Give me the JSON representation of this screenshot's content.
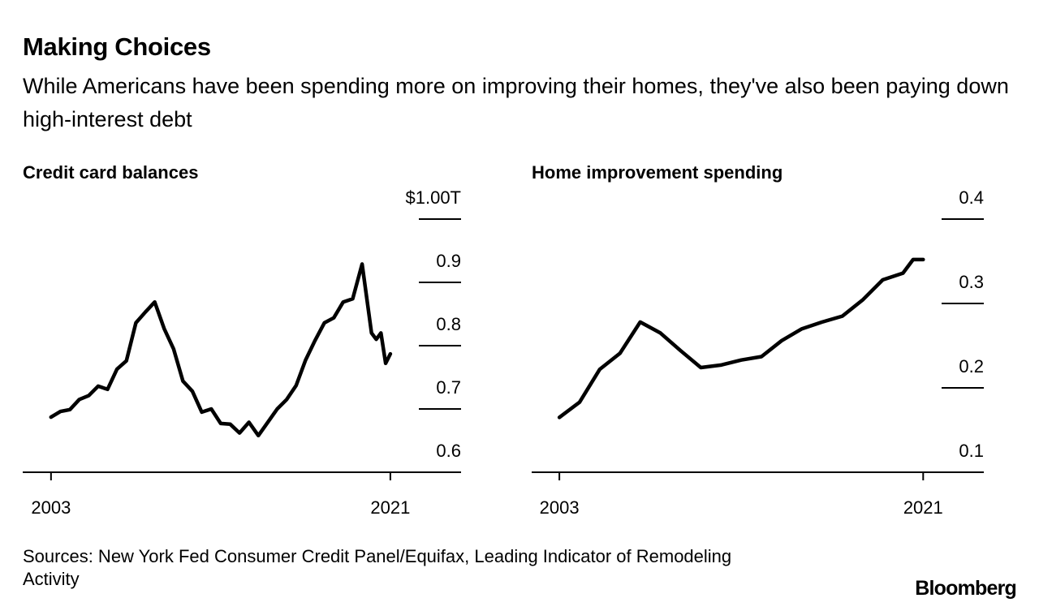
{
  "title": "Making Choices",
  "subtitle": "While Americans have been spending more on improving their homes, they've also been paying down high-interest debt",
  "source": "Sources: New York Fed Consumer Credit Panel/Equifax, Leading Indicator of Remodeling Activity",
  "brand": "Bloomberg",
  "chart_data": [
    {
      "type": "line",
      "title": "Credit card balances",
      "x": [
        2003,
        2003.5,
        2004,
        2004.5,
        2005,
        2005.5,
        2006,
        2006.5,
        2007,
        2007.5,
        2008,
        2008.5,
        2009,
        2009.5,
        2010,
        2010.5,
        2011,
        2011.5,
        2012,
        2012.5,
        2013,
        2013.5,
        2014,
        2014.5,
        2015,
        2015.5,
        2016,
        2016.5,
        2017,
        2017.5,
        2018,
        2018.5,
        2019,
        2019.5,
        2020,
        2020.25,
        2020.5,
        2020.75,
        2021
      ],
      "series": [
        {
          "color": "#000000",
          "values": [
            0.687,
            0.696,
            0.699,
            0.715,
            0.721,
            0.736,
            0.731,
            0.763,
            0.776,
            0.836,
            0.853,
            0.869,
            0.827,
            0.795,
            0.744,
            0.728,
            0.695,
            0.7,
            0.677,
            0.676,
            0.662,
            0.679,
            0.658,
            0.679,
            0.7,
            0.715,
            0.737,
            0.777,
            0.808,
            0.836,
            0.844,
            0.869,
            0.874,
            0.929,
            0.82,
            0.81,
            0.82,
            0.772,
            0.787
          ]
        }
      ],
      "xlim": [
        2001.5,
        2024.75
      ],
      "xticks": [
        2003,
        2021
      ],
      "ylim": [
        0.6,
        1.0
      ],
      "yticks": [
        0.6,
        0.7,
        0.8,
        0.9,
        {
          "value": 1.0,
          "label": "$1.00T"
        }
      ]
    },
    {
      "type": "line",
      "title": "Home improvement spending",
      "x": [
        2003,
        2004,
        2005,
        2006,
        2007,
        2008,
        2009,
        2010,
        2011,
        2012,
        2013,
        2014,
        2015,
        2016,
        2017,
        2018,
        2019,
        2020,
        2020.5,
        2021
      ],
      "series": [
        {
          "color": "#000000",
          "values": [
            0.165,
            0.183,
            0.222,
            0.241,
            0.278,
            0.265,
            0.244,
            0.224,
            0.227,
            0.233,
            0.237,
            0.256,
            0.27,
            0.278,
            0.285,
            0.304,
            0.328,
            0.336,
            0.352,
            0.352
          ]
        }
      ],
      "xlim": [
        2001.63,
        2024.0
      ],
      "xticks": [
        2003,
        2021
      ],
      "ylim": [
        0.1,
        0.4
      ],
      "yticks": [
        0.1,
        0.2,
        0.3,
        0.4
      ]
    }
  ]
}
